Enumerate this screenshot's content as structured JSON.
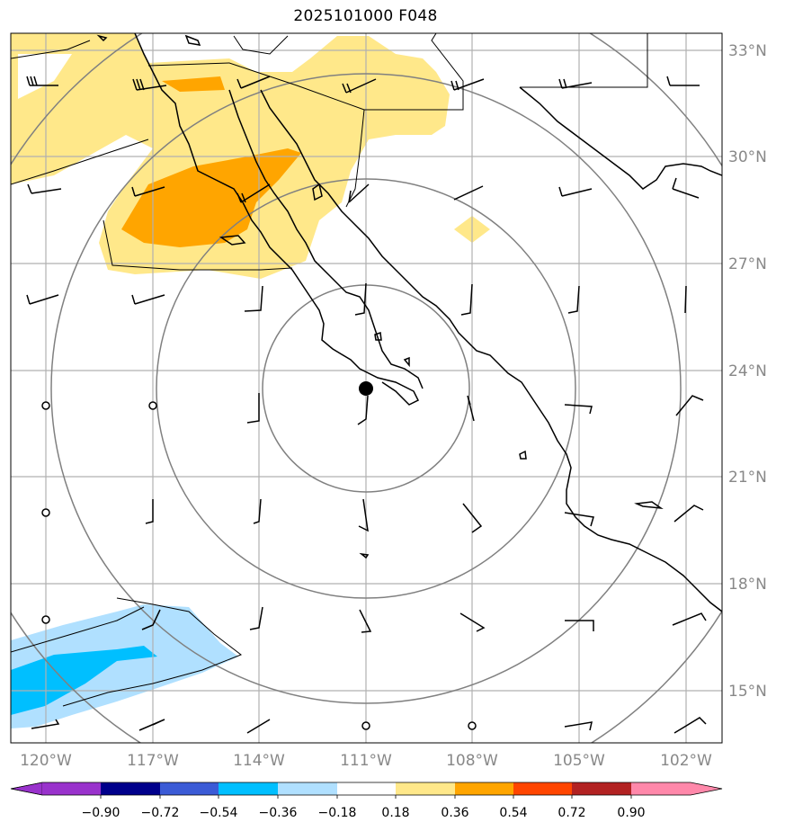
{
  "title": "2025101000 F048",
  "lat_labels": [
    "33°N",
    "30°N",
    "27°N",
    "24°N",
    "21°N",
    "18°N",
    "15°N"
  ],
  "lon_labels": [
    "120°W",
    "117°W",
    "114°W",
    "111°W",
    "108°W",
    "105°W",
    "102°W"
  ],
  "colorbar": {
    "levels": [
      "−0.90",
      "−0.72",
      "−0.54",
      "−0.36",
      "−0.18",
      "0.18",
      "0.36",
      "0.54",
      "0.72",
      "0.90"
    ],
    "colors": [
      "#9932cc",
      "#00008b",
      "#3b5bd6",
      "#00bfff",
      "#b0e0ff",
      "#ffffff",
      "#ffe88a",
      "#ffa500",
      "#ff4500",
      "#b22222",
      "#ff88aa"
    ]
  },
  "map": {
    "extent_lon": [
      -121,
      -101
    ],
    "extent_lat": [
      13.5,
      33.5
    ],
    "center_marker": {
      "lon": -111.0,
      "lat": 23.5
    },
    "range_ring_color": "#808080",
    "grid_color": "#b0b0b0"
  }
}
